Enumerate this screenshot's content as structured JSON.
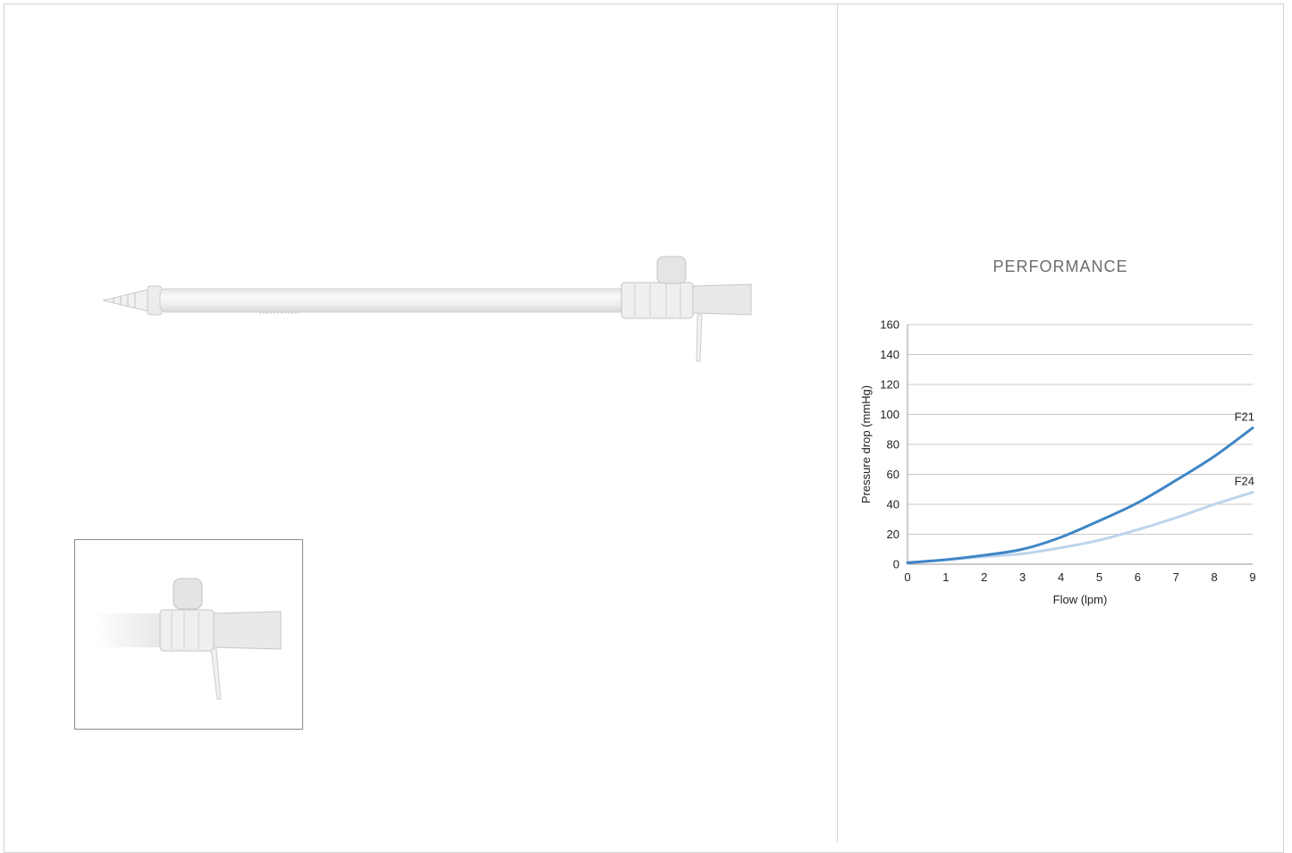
{
  "panel_right": {
    "title": "PERFORMANCE"
  },
  "chart_data": {
    "type": "line",
    "title": "PERFORMANCE",
    "xlabel": "Flow (lpm)",
    "ylabel": "Pressure drop (mmHg)",
    "xlim": [
      0,
      9
    ],
    "ylim": [
      0,
      160
    ],
    "x_ticks": [
      0,
      1,
      2,
      3,
      4,
      5,
      6,
      7,
      8,
      9
    ],
    "y_ticks": [
      0,
      20,
      40,
      60,
      80,
      100,
      120,
      140,
      160
    ],
    "grid": "horizontal",
    "series": [
      {
        "name": "F21",
        "color": "#3f86c6",
        "x": [
          0,
          1,
          2,
          3,
          4,
          5,
          6,
          7,
          8,
          9
        ],
        "y": [
          1,
          3,
          6,
          10,
          18,
          29,
          41,
          56,
          72,
          91
        ]
      },
      {
        "name": "F24",
        "color": "#bdd4ec",
        "x": [
          0,
          1,
          2,
          3,
          4,
          5,
          6,
          7,
          8,
          9
        ],
        "y": [
          1,
          3,
          5,
          7,
          11,
          16,
          23,
          31,
          40,
          48
        ]
      }
    ]
  }
}
